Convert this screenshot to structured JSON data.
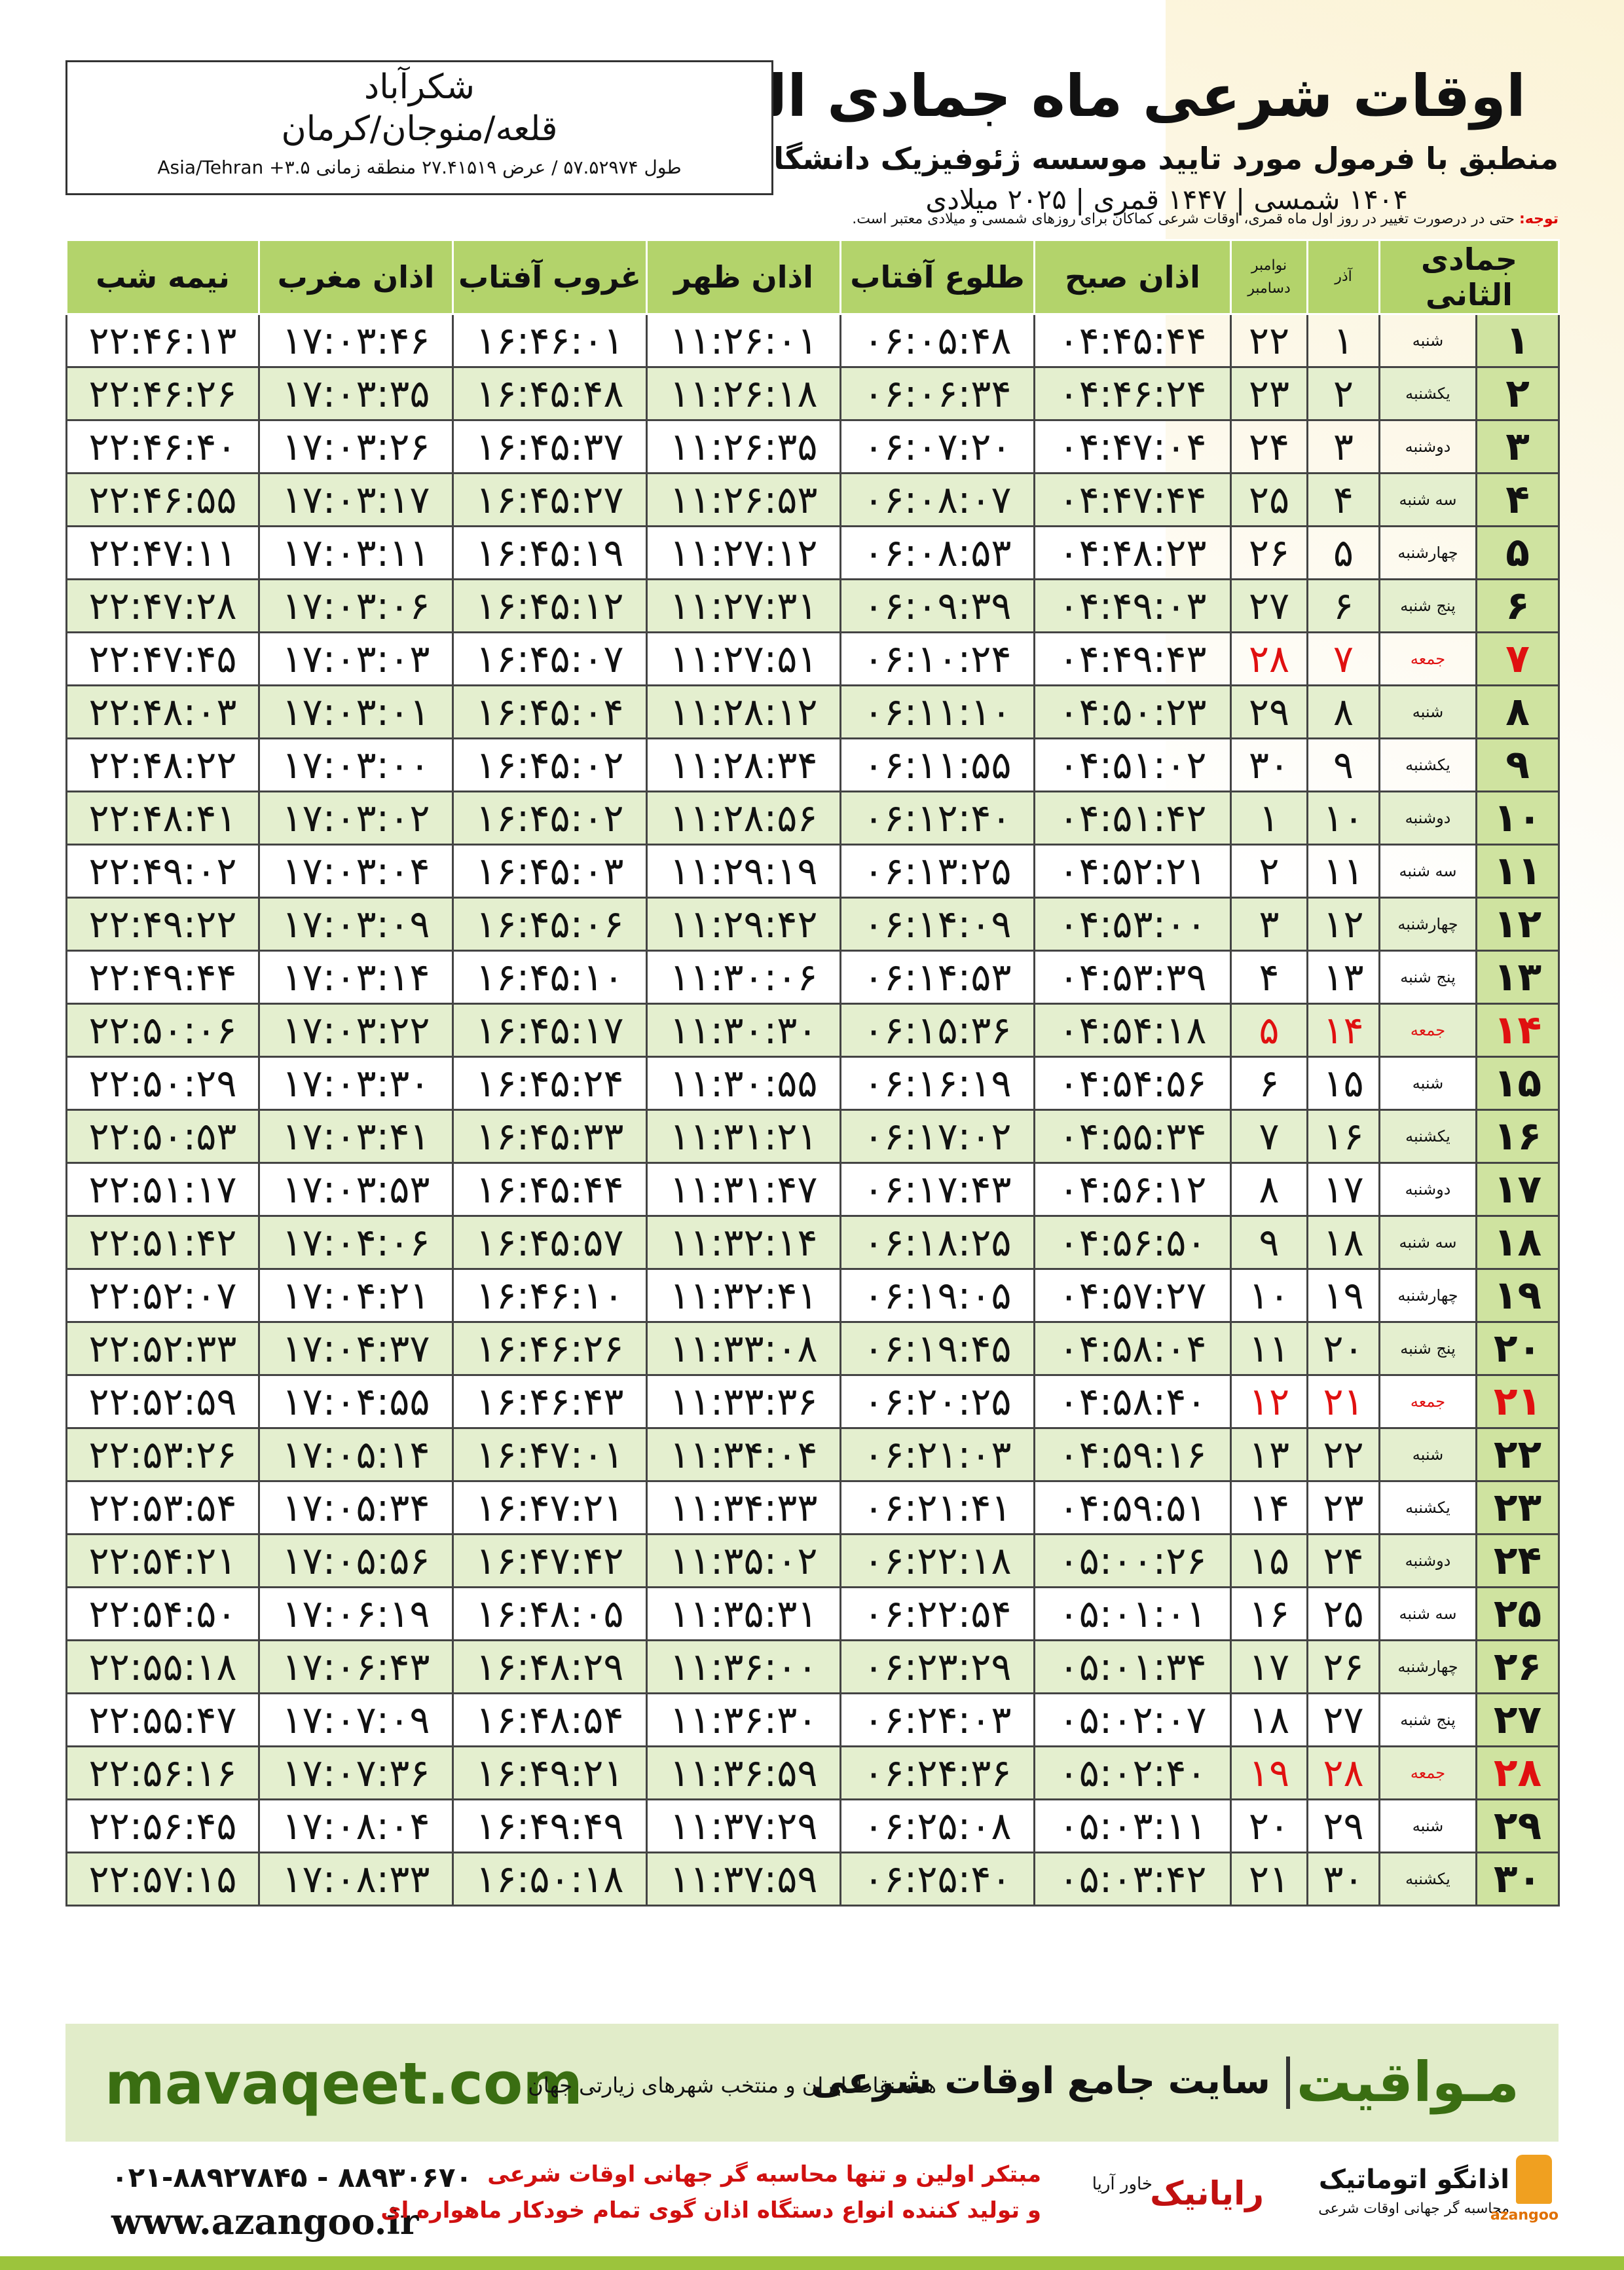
{
  "header": {
    "title": "اوقات شرعی ماه جمادی الثانی",
    "subtitle": "منطبق با فرمول مورد تایید موسسه ژئوفیزیک دانشگاه تهران",
    "dates": "۱۴۰۴ شمسی | ۱۴۴۷ قمری | ۲۰۲۵ میلادی"
  },
  "location": {
    "city": "شکرآباد",
    "region": "قلعه/منوجان/کرمان",
    "coordinates": "طول ۵۷.۵۲۹۷۴ / عرض ۲۷.۴۱۵۱۹ منطقه زمانی ۳.۵+ Asia/Tehran"
  },
  "note": {
    "label": "توجه:",
    "text": "حتی در درصورت تغییر در روز اول ماه قمری، اوقات شرعی کماکان برای روزهای شمسی و میلادی معتبر است."
  },
  "table": {
    "header": [
      "جمادی الثانی",
      "آذر",
      "نوامبر",
      "دسامبر",
      "اذان صبح",
      "طلوع آفتاب",
      "اذان ظهر",
      "غروب آفتاب",
      "اذان مغرب",
      "نیمه شب"
    ],
    "rows": [
      [
        "۱",
        "شنبه",
        "۱",
        "۲۲",
        "۰۴:۴۵:۴۴",
        "۰۶:۰۵:۴۸",
        "۱۱:۲۶:۰۱",
        "۱۶:۴۶:۰۱",
        "۱۷:۰۳:۴۶",
        "۲۲:۴۶:۱۳"
      ],
      [
        "۲",
        "یکشنبه",
        "۲",
        "۲۳",
        "۰۴:۴۶:۲۴",
        "۰۶:۰۶:۳۴",
        "۱۱:۲۶:۱۸",
        "۱۶:۴۵:۴۸",
        "۱۷:۰۳:۳۵",
        "۲۲:۴۶:۲۶"
      ],
      [
        "۳",
        "دوشنبه",
        "۳",
        "۲۴",
        "۰۴:۴۷:۰۴",
        "۰۶:۰۷:۲۰",
        "۱۱:۲۶:۳۵",
        "۱۶:۴۵:۳۷",
        "۱۷:۰۳:۲۶",
        "۲۲:۴۶:۴۰"
      ],
      [
        "۴",
        "سه شنبه",
        "۴",
        "۲۵",
        "۰۴:۴۷:۴۴",
        "۰۶:۰۸:۰۷",
        "۱۱:۲۶:۵۳",
        "۱۶:۴۵:۲۷",
        "۱۷:۰۳:۱۷",
        "۲۲:۴۶:۵۵"
      ],
      [
        "۵",
        "چهارشنبه",
        "۵",
        "۲۶",
        "۰۴:۴۸:۲۳",
        "۰۶:۰۸:۵۳",
        "۱۱:۲۷:۱۲",
        "۱۶:۴۵:۱۹",
        "۱۷:۰۳:۱۱",
        "۲۲:۴۷:۱۱"
      ],
      [
        "۶",
        "پنج شنبه",
        "۶",
        "۲۷",
        "۰۴:۴۹:۰۳",
        "۰۶:۰۹:۳۹",
        "۱۱:۲۷:۳۱",
        "۱۶:۴۵:۱۲",
        "۱۷:۰۳:۰۶",
        "۲۲:۴۷:۲۸"
      ],
      [
        "۷",
        "جمعه",
        "۷",
        "۲۸",
        "۰۴:۴۹:۴۳",
        "۰۶:۱۰:۲۴",
        "۱۱:۲۷:۵۱",
        "۱۶:۴۵:۰۷",
        "۱۷:۰۳:۰۳",
        "۲۲:۴۷:۴۵"
      ],
      [
        "۸",
        "شنبه",
        "۸",
        "۲۹",
        "۰۴:۵۰:۲۳",
        "۰۶:۱۱:۱۰",
        "۱۱:۲۸:۱۲",
        "۱۶:۴۵:۰۴",
        "۱۷:۰۳:۰۱",
        "۲۲:۴۸:۰۳"
      ],
      [
        "۹",
        "یکشنبه",
        "۹",
        "۳۰",
        "۰۴:۵۱:۰۲",
        "۰۶:۱۱:۵۵",
        "۱۱:۲۸:۳۴",
        "۱۶:۴۵:۰۲",
        "۱۷:۰۳:۰۰",
        "۲۲:۴۸:۲۲"
      ],
      [
        "۱۰",
        "دوشنبه",
        "۱۰",
        "۱",
        "۰۴:۵۱:۴۲",
        "۰۶:۱۲:۴۰",
        "۱۱:۲۸:۵۶",
        "۱۶:۴۵:۰۲",
        "۱۷:۰۳:۰۲",
        "۲۲:۴۸:۴۱"
      ],
      [
        "۱۱",
        "سه شنبه",
        "۱۱",
        "۲",
        "۰۴:۵۲:۲۱",
        "۰۶:۱۳:۲۵",
        "۱۱:۲۹:۱۹",
        "۱۶:۴۵:۰۳",
        "۱۷:۰۳:۰۴",
        "۲۲:۴۹:۰۲"
      ],
      [
        "۱۲",
        "چهارشنبه",
        "۱۲",
        "۳",
        "۰۴:۵۳:۰۰",
        "۰۶:۱۴:۰۹",
        "۱۱:۲۹:۴۲",
        "۱۶:۴۵:۰۶",
        "۱۷:۰۳:۰۹",
        "۲۲:۴۹:۲۲"
      ],
      [
        "۱۳",
        "پنج شنبه",
        "۱۳",
        "۴",
        "۰۴:۵۳:۳۹",
        "۰۶:۱۴:۵۳",
        "۱۱:۳۰:۰۶",
        "۱۶:۴۵:۱۰",
        "۱۷:۰۳:۱۴",
        "۲۲:۴۹:۴۴"
      ],
      [
        "۱۴",
        "جمعه",
        "۱۴",
        "۵",
        "۰۴:۵۴:۱۸",
        "۰۶:۱۵:۳۶",
        "۱۱:۳۰:۳۰",
        "۱۶:۴۵:۱۷",
        "۱۷:۰۳:۲۲",
        "۲۲:۵۰:۰۶"
      ],
      [
        "۱۵",
        "شنبه",
        "۱۵",
        "۶",
        "۰۴:۵۴:۵۶",
        "۰۶:۱۶:۱۹",
        "۱۱:۳۰:۵۵",
        "۱۶:۴۵:۲۴",
        "۱۷:۰۳:۳۰",
        "۲۲:۵۰:۲۹"
      ],
      [
        "۱۶",
        "یکشنبه",
        "۱۶",
        "۷",
        "۰۴:۵۵:۳۴",
        "۰۶:۱۷:۰۲",
        "۱۱:۳۱:۲۱",
        "۱۶:۴۵:۳۳",
        "۱۷:۰۳:۴۱",
        "۲۲:۵۰:۵۳"
      ],
      [
        "۱۷",
        "دوشنبه",
        "۱۷",
        "۸",
        "۰۴:۵۶:۱۲",
        "۰۶:۱۷:۴۳",
        "۱۱:۳۱:۴۷",
        "۱۶:۴۵:۴۴",
        "۱۷:۰۳:۵۳",
        "۲۲:۵۱:۱۷"
      ],
      [
        "۱۸",
        "سه شنبه",
        "۱۸",
        "۹",
        "۰۴:۵۶:۵۰",
        "۰۶:۱۸:۲۵",
        "۱۱:۳۲:۱۴",
        "۱۶:۴۵:۵۷",
        "۱۷:۰۴:۰۶",
        "۲۲:۵۱:۴۲"
      ],
      [
        "۱۹",
        "چهارشنبه",
        "۱۹",
        "۱۰",
        "۰۴:۵۷:۲۷",
        "۰۶:۱۹:۰۵",
        "۱۱:۳۲:۴۱",
        "۱۶:۴۶:۱۰",
        "۱۷:۰۴:۲۱",
        "۲۲:۵۲:۰۷"
      ],
      [
        "۲۰",
        "پنج شنبه",
        "۲۰",
        "۱۱",
        "۰۴:۵۸:۰۴",
        "۰۶:۱۹:۴۵",
        "۱۱:۳۳:۰۸",
        "۱۶:۴۶:۲۶",
        "۱۷:۰۴:۳۷",
        "۲۲:۵۲:۳۳"
      ],
      [
        "۲۱",
        "جمعه",
        "۲۱",
        "۱۲",
        "۰۴:۵۸:۴۰",
        "۰۶:۲۰:۲۵",
        "۱۱:۳۳:۳۶",
        "۱۶:۴۶:۴۳",
        "۱۷:۰۴:۵۵",
        "۲۲:۵۲:۵۹"
      ],
      [
        "۲۲",
        "شنبه",
        "۲۲",
        "۱۳",
        "۰۴:۵۹:۱۶",
        "۰۶:۲۱:۰۳",
        "۱۱:۳۴:۰۴",
        "۱۶:۴۷:۰۱",
        "۱۷:۰۵:۱۴",
        "۲۲:۵۳:۲۶"
      ],
      [
        "۲۳",
        "یکشنبه",
        "۲۳",
        "۱۴",
        "۰۴:۵۹:۵۱",
        "۰۶:۲۱:۴۱",
        "۱۱:۳۴:۳۳",
        "۱۶:۴۷:۲۱",
        "۱۷:۰۵:۳۴",
        "۲۲:۵۳:۵۴"
      ],
      [
        "۲۴",
        "دوشنبه",
        "۲۴",
        "۱۵",
        "۰۵:۰۰:۲۶",
        "۰۶:۲۲:۱۸",
        "۱۱:۳۵:۰۲",
        "۱۶:۴۷:۴۲",
        "۱۷:۰۵:۵۶",
        "۲۲:۵۴:۲۱"
      ],
      [
        "۲۵",
        "سه شنبه",
        "۲۵",
        "۱۶",
        "۰۵:۰۱:۰۱",
        "۰۶:۲۲:۵۴",
        "۱۱:۳۵:۳۱",
        "۱۶:۴۸:۰۵",
        "۱۷:۰۶:۱۹",
        "۲۲:۵۴:۵۰"
      ],
      [
        "۲۶",
        "چهارشنبه",
        "۲۶",
        "۱۷",
        "۰۵:۰۱:۳۴",
        "۰۶:۲۳:۲۹",
        "۱۱:۳۶:۰۰",
        "۱۶:۴۸:۲۹",
        "۱۷:۰۶:۴۳",
        "۲۲:۵۵:۱۸"
      ],
      [
        "۲۷",
        "پنج شنبه",
        "۲۷",
        "۱۸",
        "۰۵:۰۲:۰۷",
        "۰۶:۲۴:۰۳",
        "۱۱:۳۶:۳۰",
        "۱۶:۴۸:۵۴",
        "۱۷:۰۷:۰۹",
        "۲۲:۵۵:۴۷"
      ],
      [
        "۲۸",
        "جمعه",
        "۲۸",
        "۱۹",
        "۰۵:۰۲:۴۰",
        "۰۶:۲۴:۳۶",
        "۱۱:۳۶:۵۹",
        "۱۶:۴۹:۲۱",
        "۱۷:۰۷:۳۶",
        "۲۲:۵۶:۱۶"
      ],
      [
        "۲۹",
        "شنبه",
        "۲۹",
        "۲۰",
        "۰۵:۰۳:۱۱",
        "۰۶:۲۵:۰۸",
        "۱۱:۳۷:۲۹",
        "۱۶:۴۹:۴۹",
        "۱۷:۰۸:۰۴",
        "۲۲:۵۶:۴۵"
      ],
      [
        "۳۰",
        "یکشنبه",
        "۳۰",
        "۲۱",
        "۰۵:۰۳:۴۲",
        "۰۶:۲۵:۴۰",
        "۱۱:۳۷:۵۹",
        "۱۶:۵۰:۱۸",
        "۱۷:۰۸:۳۳",
        "۲۲:۵۷:۱۵"
      ]
    ]
  },
  "footer": {
    "site": "mavaqeet.com",
    "brand": "مـواقیت",
    "slogan": "سایت جامع اوقات شرعی",
    "coverage": "همه نقاط ایران و منتخب شهرهای زیارتی جهان"
  },
  "contact": {
    "phone": "۰۲۱-۸۸۹۲۷۸۴۵ - ۸۸۹۳۰۶۷۰",
    "website": "www.azangoo.ir",
    "line1": "مبتکر اولین و تنها محاسبه گر جهانی اوقات شرعی",
    "line2": "و تولید کننده انواع دستگاه اذان گوی تمام خودکار ماهواره ای"
  },
  "logos": {
    "rayanik": "رایانیک",
    "khavar": "خاور آریا",
    "azangoo": "اذانگو اتوماتیک",
    "azangoo_sub": "محاسبه گر جهانی اوقات شرعی",
    "azangoo_en": "azangoo"
  }
}
